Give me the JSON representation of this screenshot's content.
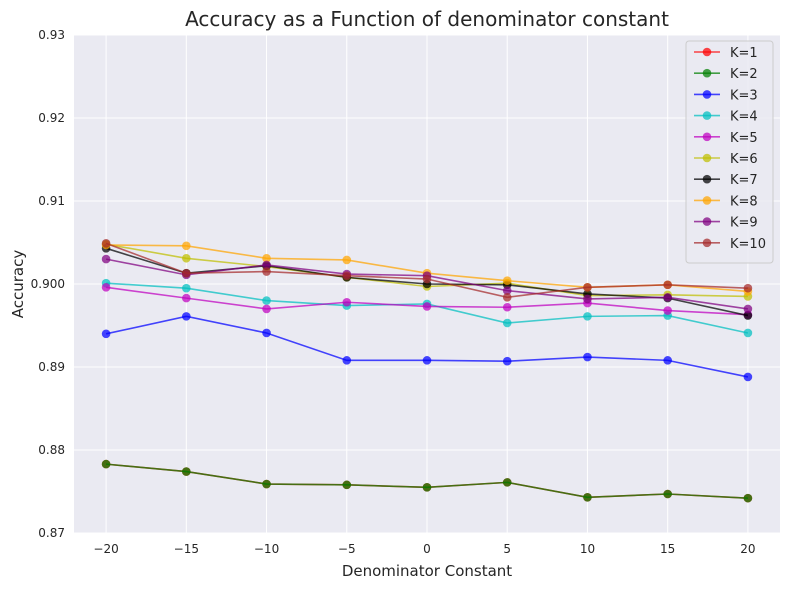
{
  "chart_data": {
    "type": "line",
    "title": "Accuracy as a Function of denominator constant",
    "xlabel": "Denominator Constant",
    "ylabel": "Accuracy",
    "x": [
      -20,
      -15,
      -10,
      -5,
      0,
      5,
      10,
      15,
      20
    ],
    "xlim": [
      -22,
      22
    ],
    "ylim": [
      0.87,
      0.93
    ],
    "xticks": [
      -20,
      -15,
      -10,
      -5,
      0,
      5,
      10,
      15,
      20
    ],
    "yticks": [
      0.87,
      0.88,
      0.89,
      0.9,
      0.91,
      0.92,
      0.93
    ],
    "xtick_labels": [
      "−20",
      "−15",
      "−10",
      "−5",
      "0",
      "5",
      "10",
      "15",
      "20"
    ],
    "ytick_labels": [
      "0.87",
      "0.88",
      "0.89",
      "0.900",
      "0.91",
      "0.92",
      "0.93"
    ],
    "grid": true,
    "legend_position": "top-right",
    "background": "#eaeaf2",
    "series": [
      {
        "name": "K=1",
        "color": "#ff0000",
        "values": [
          0.8783,
          0.8774,
          0.8759,
          0.8758,
          0.8755,
          0.8761,
          0.8743,
          0.8747,
          0.8742
        ]
      },
      {
        "name": "K=2",
        "color": "#008000",
        "values": [
          0.8783,
          0.8774,
          0.8759,
          0.8758,
          0.8755,
          0.8761,
          0.8743,
          0.8747,
          0.8742
        ]
      },
      {
        "name": "K=3",
        "color": "#0000ff",
        "values": [
          0.894,
          0.8961,
          0.8941,
          0.8908,
          0.8908,
          0.8907,
          0.8912,
          0.8908,
          0.8888
        ]
      },
      {
        "name": "K=4",
        "color": "#00bfbf",
        "values": [
          0.9001,
          0.8995,
          0.898,
          0.8974,
          0.8976,
          0.8953,
          0.8961,
          0.8962,
          0.8941
        ]
      },
      {
        "name": "K=5",
        "color": "#bf00bf",
        "values": [
          0.8996,
          0.8983,
          0.897,
          0.8978,
          0.8973,
          0.8972,
          0.8977,
          0.8968,
          0.8963
        ]
      },
      {
        "name": "K=6",
        "color": "#bfbf00",
        "values": [
          0.9048,
          0.9031,
          0.9021,
          0.9008,
          0.8997,
          0.9001,
          0.8986,
          0.8987,
          0.8985
        ]
      },
      {
        "name": "K=7",
        "color": "#000000",
        "values": [
          0.9043,
          0.9013,
          0.9022,
          0.9008,
          0.9,
          0.8999,
          0.8988,
          0.8983,
          0.8962
        ]
      },
      {
        "name": "K=8",
        "color": "#ffa500",
        "values": [
          0.9047,
          0.9046,
          0.9031,
          0.9029,
          0.9013,
          0.9004,
          0.8996,
          0.8999,
          0.8991
        ]
      },
      {
        "name": "K=9",
        "color": "#800080",
        "values": [
          0.903,
          0.9011,
          0.9023,
          0.9012,
          0.901,
          0.8992,
          0.8982,
          0.8984,
          0.897
        ]
      },
      {
        "name": "K=10",
        "color": "#a52a2a",
        "values": [
          0.9049,
          0.9013,
          0.9015,
          0.901,
          0.9006,
          0.8984,
          0.8996,
          0.8999,
          0.8995
        ]
      }
    ]
  }
}
